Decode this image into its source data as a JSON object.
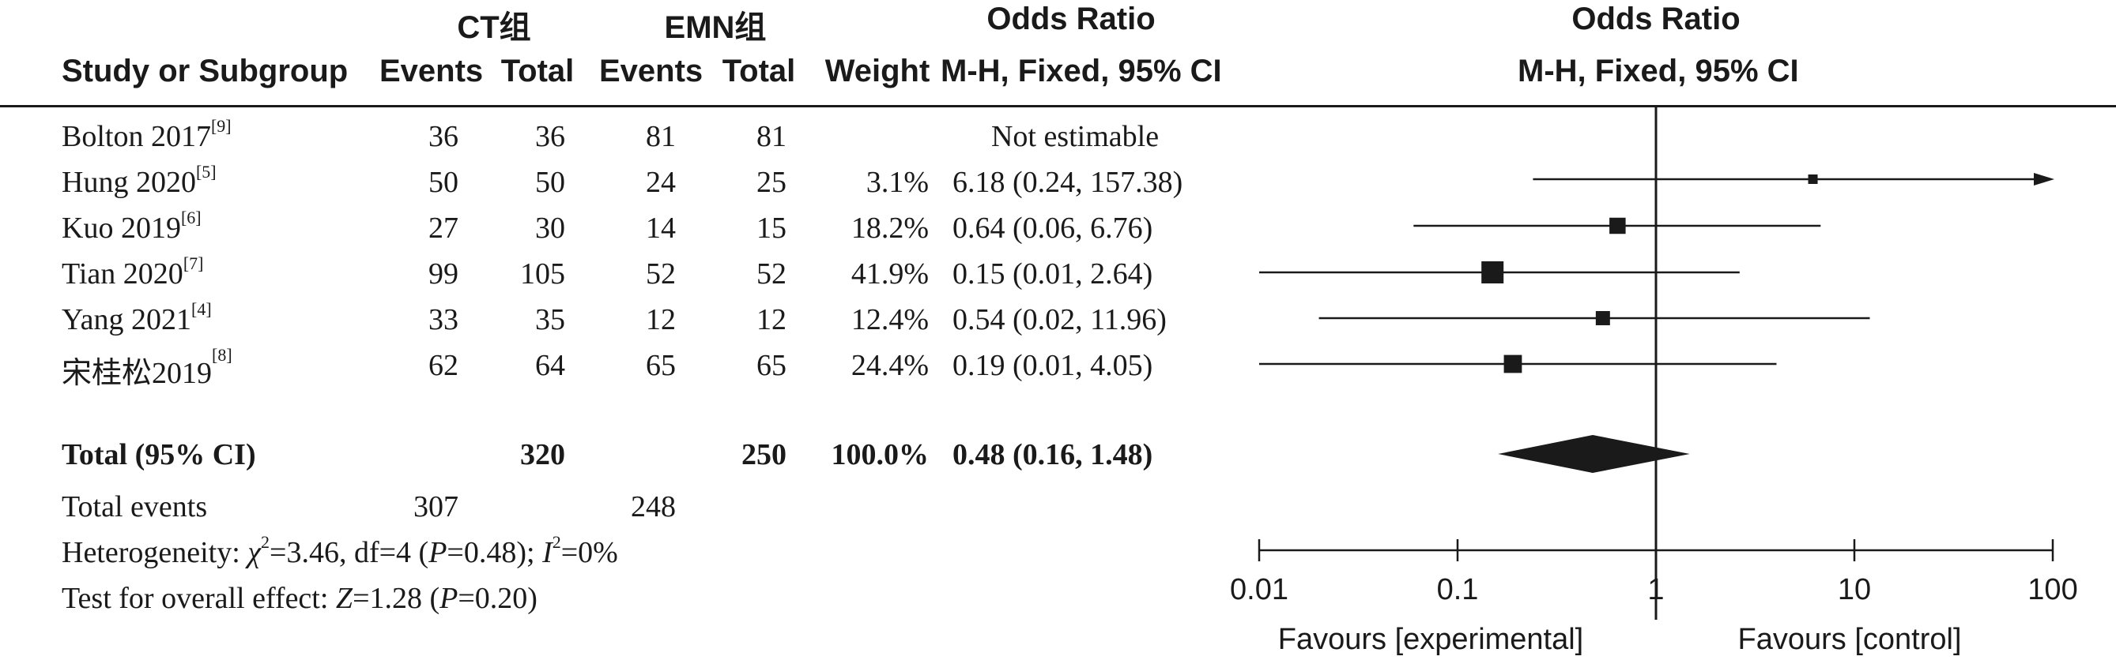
{
  "header": {
    "group1": "CT组",
    "group2": "EMN组",
    "or_title_table": "Odds Ratio",
    "or_method_table": "M-H, Fixed, 95% CI",
    "or_title_plot": "Odds Ratio",
    "or_method_plot": "M-H, Fixed, 95% CI",
    "col_study": "Study or Subgroup",
    "col_events1": "Events",
    "col_total1": "Total",
    "col_events2": "Events",
    "col_total2": "Total",
    "col_weight": "Weight"
  },
  "rows": [
    {
      "study": "Bolton 2017",
      "ref": "[9]",
      "e1": "36",
      "t1": "36",
      "e2": "81",
      "t2": "81",
      "weight": "",
      "ci": "Not estimable"
    },
    {
      "study": "Hung 2020",
      "ref": "[5]",
      "e1": "50",
      "t1": "50",
      "e2": "24",
      "t2": "25",
      "weight": "3.1%",
      "ci": "6.18 (0.24, 157.38)"
    },
    {
      "study": "Kuo 2019",
      "ref": "[6]",
      "e1": "27",
      "t1": "30",
      "e2": "14",
      "t2": "15",
      "weight": "18.2%",
      "ci": "0.64 (0.06, 6.76)"
    },
    {
      "study": "Tian 2020",
      "ref": "[7]",
      "e1": "99",
      "t1": "105",
      "e2": "52",
      "t2": "52",
      "weight": "41.9%",
      "ci": "0.15 (0.01, 2.64)"
    },
    {
      "study": "Yang 2021",
      "ref": "[4]",
      "e1": "33",
      "t1": "35",
      "e2": "12",
      "t2": "12",
      "weight": "12.4%",
      "ci": "0.54 (0.02, 11.96)"
    },
    {
      "study": "宋桂松2019",
      "ref": "[8]",
      "e1": "62",
      "t1": "64",
      "e2": "65",
      "t2": "65",
      "weight": "24.4%",
      "ci": "0.19 (0.01, 4.05)"
    }
  ],
  "total": {
    "label": "Total (95% CI)",
    "t1": "320",
    "t2": "250",
    "weight": "100.0%",
    "ci": "0.48 (0.16, 1.48)"
  },
  "events": {
    "label": "Total events",
    "e1": "307",
    "e2": "248"
  },
  "heterogeneity": {
    "prefix": "Heterogeneity: ",
    "chi": "χ",
    "chi_sup": "2",
    "chi_val": "=3.46, df=4 (",
    "p1": "P",
    "p1_val": "=0.48); ",
    "i": "I",
    "i_sup": "2",
    "i_val": "=0%"
  },
  "overall": {
    "prefix": "Test for overall effect: ",
    "z": "Z",
    "z_val": "=1.28 (",
    "p": "P",
    "p_val": "=0.20)"
  },
  "chart_data": {
    "type": "scatter",
    "scale": "log",
    "xlim": [
      0.01,
      100
    ],
    "ticks": [
      0.01,
      0.1,
      1,
      10,
      100
    ],
    "tick_labels": [
      "0.01",
      "0.1",
      "1",
      "10",
      "100"
    ],
    "null_line": 1,
    "xlabel_left": "Favours [experimental]",
    "xlabel_right": "Favours [control]",
    "studies": [
      {
        "name": "Bolton 2017",
        "or": null,
        "lo": null,
        "hi": null,
        "weight": 0
      },
      {
        "name": "Hung 2020",
        "or": 6.18,
        "lo": 0.24,
        "hi": 157.38,
        "weight": 3.1
      },
      {
        "name": "Kuo 2019",
        "or": 0.64,
        "lo": 0.06,
        "hi": 6.76,
        "weight": 18.2
      },
      {
        "name": "Tian 2020",
        "or": 0.15,
        "lo": 0.01,
        "hi": 2.64,
        "weight": 41.9
      },
      {
        "name": "Yang 2021",
        "or": 0.54,
        "lo": 0.02,
        "hi": 11.96,
        "weight": 12.4
      },
      {
        "name": "宋桂松2019",
        "or": 0.19,
        "lo": 0.01,
        "hi": 4.05,
        "weight": 24.4
      }
    ],
    "pooled": {
      "or": 0.48,
      "lo": 0.16,
      "hi": 1.48
    }
  }
}
